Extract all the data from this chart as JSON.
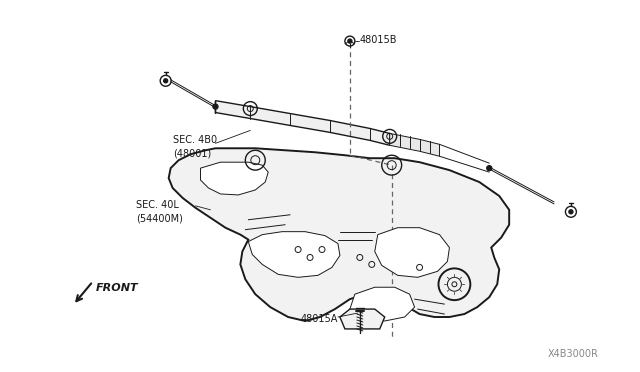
{
  "background_color": "#ffffff",
  "line_color": "#1a1a1a",
  "text_color": "#1a1a1a",
  "diagram_title": "X4B3000R",
  "labels": {
    "part_48015B": "48015B",
    "part_48015A": "48015A",
    "sec_480": "SEC. 4B0\n(48001)",
    "sec_40L": "SEC. 40L\n(54400M)",
    "front": "FRONT"
  },
  "fig_width": 6.4,
  "fig_height": 3.72,
  "dpi": 100
}
